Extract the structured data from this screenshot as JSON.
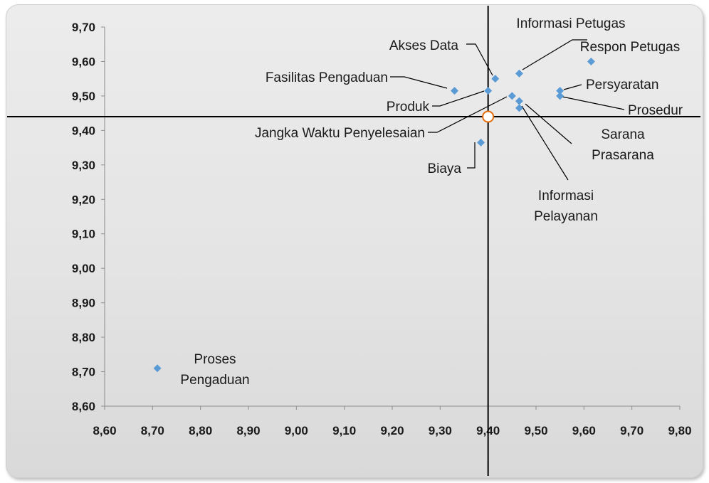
{
  "chart_data": {
    "type": "scatter",
    "xlim": [
      8.6,
      9.8
    ],
    "ylim": [
      8.6,
      9.7
    ],
    "x_ticks": [
      "8,60",
      "8,70",
      "8,80",
      "8,90",
      "9,00",
      "9,10",
      "9,20",
      "9,30",
      "9,40",
      "9,50",
      "9,60",
      "9,70",
      "9,80"
    ],
    "y_ticks": [
      "8,60",
      "8,70",
      "8,80",
      "8,90",
      "9,00",
      "9,10",
      "9,20",
      "9,30",
      "9,40",
      "9,50",
      "9,60",
      "9,70"
    ],
    "mean_x": 9.4,
    "mean_y": 9.44,
    "grid": false,
    "legend": "none",
    "marker_color": "#5b9bd5",
    "mean_marker_color": "#e46c0a",
    "points": [
      {
        "label": "Proses Pengaduan",
        "label_lines": [
          "Proses",
          "Pengaduan"
        ],
        "x": 8.71,
        "y": 8.71
      },
      {
        "label": "Fasilitas Pengaduan",
        "label_lines": [
          "Fasilitas Pengaduan"
        ],
        "x": 9.33,
        "y": 9.515
      },
      {
        "label": "Produk",
        "label_lines": [
          "Produk"
        ],
        "x": 9.4,
        "y": 9.515
      },
      {
        "label": "Akses Data",
        "label_lines": [
          "Akses Data"
        ],
        "x": 9.415,
        "y": 9.55
      },
      {
        "label": "Jangka Waktu Penyelesaian",
        "label_lines": [
          "Jangka Waktu Penyelesaian"
        ],
        "x": 9.45,
        "y": 9.5
      },
      {
        "label": "Biaya",
        "label_lines": [
          "Biaya"
        ],
        "x": 9.385,
        "y": 9.365
      },
      {
        "label": "Informasi Petugas",
        "label_lines": [
          "Informasi Petugas"
        ],
        "x": 9.465,
        "y": 9.565
      },
      {
        "label": "Sarana Prasarana",
        "label_lines": [
          "Sarana",
          "Prasarana"
        ],
        "x": 9.465,
        "y": 9.485
      },
      {
        "label": "Informasi Pelayanan",
        "label_lines": [
          "Informasi",
          "Pelayanan"
        ],
        "x": 9.465,
        "y": 9.465
      },
      {
        "label": "Persyaratan",
        "label_lines": [
          "Persyaratan"
        ],
        "x": 9.55,
        "y": 9.515
      },
      {
        "label": "Prosedur",
        "label_lines": [
          "Prosedur"
        ],
        "x": 9.55,
        "y": 9.5
      },
      {
        "label": "Respon Petugas",
        "label_lines": [
          "Respon Petugas"
        ],
        "x": 9.615,
        "y": 9.6
      }
    ]
  }
}
